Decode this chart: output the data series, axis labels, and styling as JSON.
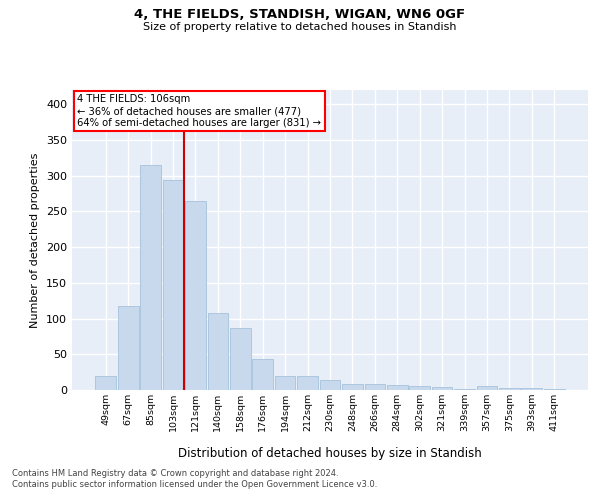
{
  "title": "4, THE FIELDS, STANDISH, WIGAN, WN6 0GF",
  "subtitle": "Size of property relative to detached houses in Standish",
  "xlabel": "Distribution of detached houses by size in Standish",
  "ylabel": "Number of detached properties",
  "categories": [
    "49sqm",
    "67sqm",
    "85sqm",
    "103sqm",
    "121sqm",
    "140sqm",
    "158sqm",
    "176sqm",
    "194sqm",
    "212sqm",
    "230sqm",
    "248sqm",
    "266sqm",
    "284sqm",
    "302sqm",
    "321sqm",
    "339sqm",
    "357sqm",
    "375sqm",
    "393sqm",
    "411sqm"
  ],
  "values": [
    19,
    118,
    315,
    294,
    265,
    108,
    87,
    43,
    20,
    20,
    14,
    9,
    8,
    7,
    6,
    4,
    2,
    5,
    3,
    3,
    2
  ],
  "bar_color": "#c8d9ee",
  "bar_edge_color": "#9bbbd6",
  "vline_color": "#cc0000",
  "vline_x": 3.5,
  "annotation_text1": "4 THE FIELDS: 106sqm",
  "annotation_text2": "← 36% of detached houses are smaller (477)",
  "annotation_text3": "64% of semi-detached houses are larger (831) →",
  "annotation_box_color": "white",
  "annotation_box_edge": "red",
  "ylim": [
    0,
    420
  ],
  "yticks": [
    0,
    50,
    100,
    150,
    200,
    250,
    300,
    350,
    400
  ],
  "bg_color": "#e8eef8",
  "grid_color": "white",
  "footer1": "Contains HM Land Registry data © Crown copyright and database right 2024.",
  "footer2": "Contains public sector information licensed under the Open Government Licence v3.0."
}
